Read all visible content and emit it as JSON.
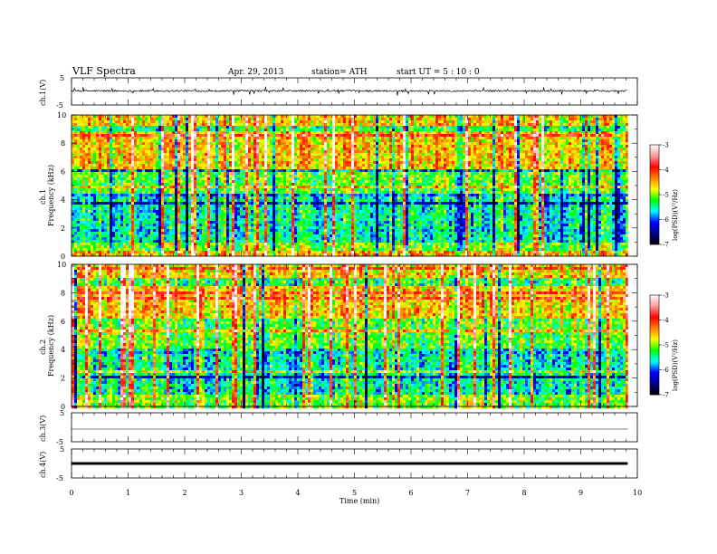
{
  "header": {
    "title": "VLF  Spectra",
    "date": "Apr. 29, 2013",
    "station": "station= ATH",
    "start": "start  UT  =   5  : 10 : 0"
  },
  "chart_data": [
    {
      "type": "line",
      "panel": "ch1-waveform",
      "ylabel": "ch.1(V)",
      "xlim": [
        0,
        10
      ],
      "ylim": [
        -5,
        5
      ],
      "yticks": [
        "5",
        "-5"
      ],
      "trace_end_min": 9.83,
      "description_level": 0.2,
      "noise_amplitude": 0.6,
      "spike_amplitude": 1.8
    },
    {
      "type": "heatmap",
      "panel": "ch1-spectrogram",
      "ylabel_channel": "ch.1",
      "ylabel": "Frequency (kHz)",
      "xlim": [
        0,
        10
      ],
      "ylim": [
        0,
        10
      ],
      "yticks": [
        "0",
        "2",
        "4",
        "6",
        "8",
        "10"
      ],
      "colorbar": {
        "label": "log(PSD)(V²/Hz)",
        "range": [
          -7,
          -3
        ],
        "ticks": [
          "-3",
          "-4",
          "-5",
          "-6",
          "-7"
        ],
        "colormap": [
          "#000000",
          "#00008b",
          "#0000ff",
          "#00ffff",
          "#00ff00",
          "#ffff00",
          "#ff8000",
          "#ff0000",
          "#ff9999",
          "#ffffff"
        ]
      }
    },
    {
      "type": "heatmap",
      "panel": "ch2-spectrogram",
      "ylabel_channel": "ch.2",
      "ylabel": "Frequency (kHz)",
      "xlim": [
        0,
        10
      ],
      "ylim": [
        0,
        10
      ],
      "yticks": [
        "0",
        "2",
        "4",
        "6",
        "8",
        "10"
      ],
      "colorbar": {
        "label": "log(PSD)(V²/Hz)",
        "range": [
          -7,
          -3
        ],
        "ticks": [
          "-3",
          "-4",
          "-5",
          "-6",
          "-7"
        ]
      }
    },
    {
      "type": "line",
      "panel": "ch3-waveform",
      "ylabel": "ch.3(V)",
      "xlim": [
        0,
        10
      ],
      "ylim": [
        -5,
        5
      ],
      "yticks": [
        "5",
        "-5"
      ],
      "level": 0
    },
    {
      "type": "line",
      "panel": "ch4-waveform",
      "ylabel": "ch.4(V)",
      "xlim": [
        0,
        10
      ],
      "ylim": [
        -5,
        5
      ],
      "yticks": [
        "5",
        "-5"
      ],
      "level": 0
    }
  ],
  "xaxis": {
    "label": "Time  (min)",
    "ticks": [
      "0",
      "1",
      "2",
      "3",
      "4",
      "5",
      "6",
      "7",
      "8",
      "9",
      "10"
    ]
  }
}
